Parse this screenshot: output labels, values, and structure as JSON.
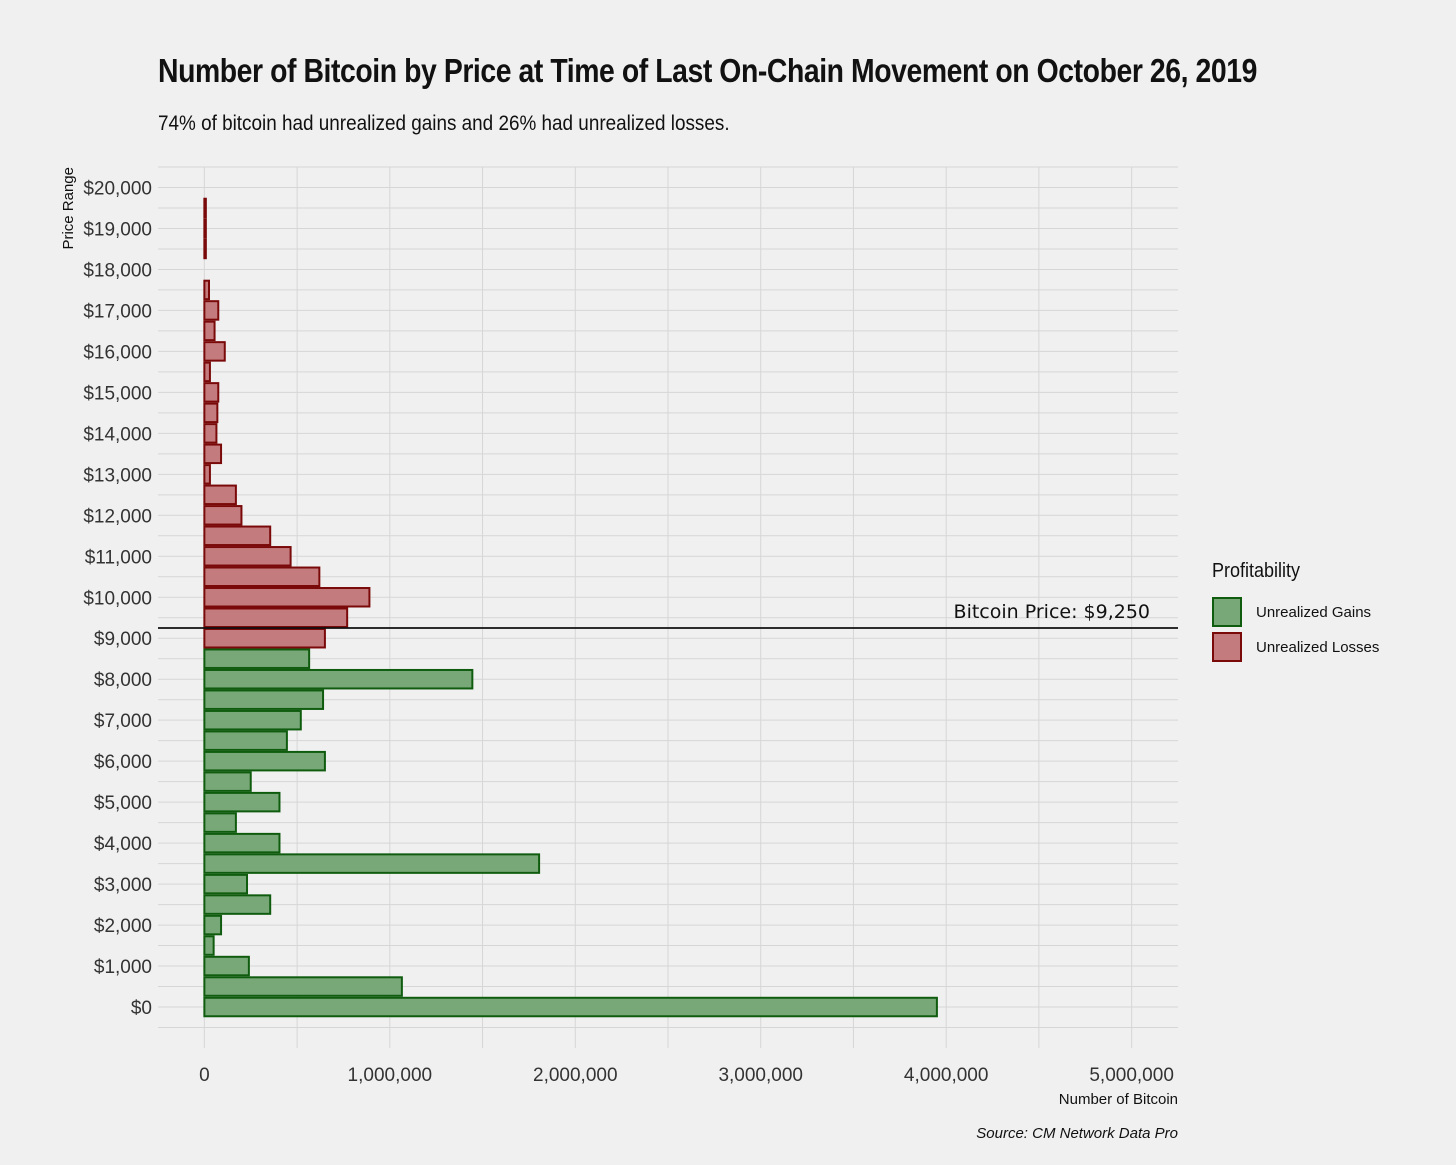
{
  "title": "Number of Bitcoin by Price at Time of Last On-Chain Movement on October 26, 2019",
  "subtitle": "74% of bitcoin had unrealized gains and 26% had unrealized losses.",
  "source": "Source: CM Network Data Pro",
  "colors": {
    "background": "#f0f0f0",
    "grid": "#d6d6d6",
    "gains_fill": "#78a878",
    "gains_stroke": "#0f5c0f",
    "losses_fill": "#c47b7e",
    "losses_stroke": "#7a0a0a"
  },
  "chart_data": {
    "type": "bar",
    "orientation": "horizontal",
    "xlabel": "Number of Bitcoin",
    "ylabel": "Price Range",
    "xlim": [
      -250000,
      5250000
    ],
    "ylim": [
      -1000,
      20500
    ],
    "x_ticks": [
      0,
      1000000,
      2000000,
      3000000,
      4000000,
      5000000
    ],
    "x_tick_labels": [
      "0",
      "1,000,000",
      "2,000,000",
      "3,000,000",
      "4,000,000",
      "5,000,000"
    ],
    "y_ticks": [
      0,
      1000,
      2000,
      3000,
      4000,
      5000,
      6000,
      7000,
      8000,
      9000,
      10000,
      11000,
      12000,
      13000,
      14000,
      15000,
      16000,
      17000,
      18000,
      19000,
      20000
    ],
    "y_tick_labels": [
      "$0",
      "$1,000",
      "$2,000",
      "$3,000",
      "$4,000",
      "$5,000",
      "$6,000",
      "$7,000",
      "$8,000",
      "$9,000",
      "$10,000",
      "$11,000",
      "$12,000",
      "$13,000",
      "$14,000",
      "$15,000",
      "$16,000",
      "$17,000",
      "$18,000",
      "$19,000",
      "$20,000"
    ],
    "bin_width": 500,
    "grid": true,
    "legend_title": "Profitability",
    "legend_position": "right",
    "reference_line": {
      "y": 9250,
      "label": "Bitcoin Price: $9,250"
    },
    "series": [
      {
        "name": "Unrealized Gains",
        "bins": [
          {
            "price": 0,
            "value": 3950000
          },
          {
            "price": 500,
            "value": 1065000
          },
          {
            "price": 1000,
            "value": 240000
          },
          {
            "price": 1500,
            "value": 50000
          },
          {
            "price": 2000,
            "value": 90000
          },
          {
            "price": 2500,
            "value": 355000
          },
          {
            "price": 3000,
            "value": 230000
          },
          {
            "price": 3500,
            "value": 1805000
          },
          {
            "price": 4000,
            "value": 405000
          },
          {
            "price": 4500,
            "value": 170000
          },
          {
            "price": 5000,
            "value": 405000
          },
          {
            "price": 5500,
            "value": 250000
          },
          {
            "price": 6000,
            "value": 650000
          },
          {
            "price": 6500,
            "value": 445000
          },
          {
            "price": 7000,
            "value": 520000
          },
          {
            "price": 7500,
            "value": 640000
          },
          {
            "price": 8000,
            "value": 1445000
          },
          {
            "price": 8500,
            "value": 565000
          }
        ]
      },
      {
        "name": "Unrealized Losses",
        "bins": [
          {
            "price": 9000,
            "value": 650000
          },
          {
            "price": 9500,
            "value": 770000
          },
          {
            "price": 10000,
            "value": 890000
          },
          {
            "price": 10500,
            "value": 620000
          },
          {
            "price": 11000,
            "value": 465000
          },
          {
            "price": 11500,
            "value": 355000
          },
          {
            "price": 12000,
            "value": 200000
          },
          {
            "price": 12500,
            "value": 170000
          },
          {
            "price": 13000,
            "value": 30000
          },
          {
            "price": 13500,
            "value": 90000
          },
          {
            "price": 14000,
            "value": 65000
          },
          {
            "price": 14500,
            "value": 70000
          },
          {
            "price": 15000,
            "value": 75000
          },
          {
            "price": 15500,
            "value": 30000
          },
          {
            "price": 16000,
            "value": 110000
          },
          {
            "price": 16500,
            "value": 55000
          },
          {
            "price": 17000,
            "value": 75000
          },
          {
            "price": 17500,
            "value": 25000
          },
          {
            "price": 18000,
            "value": 0
          },
          {
            "price": 18500,
            "value": 8000
          },
          {
            "price": 19000,
            "value": 8000
          },
          {
            "price": 19500,
            "value": 8000
          }
        ]
      }
    ]
  }
}
